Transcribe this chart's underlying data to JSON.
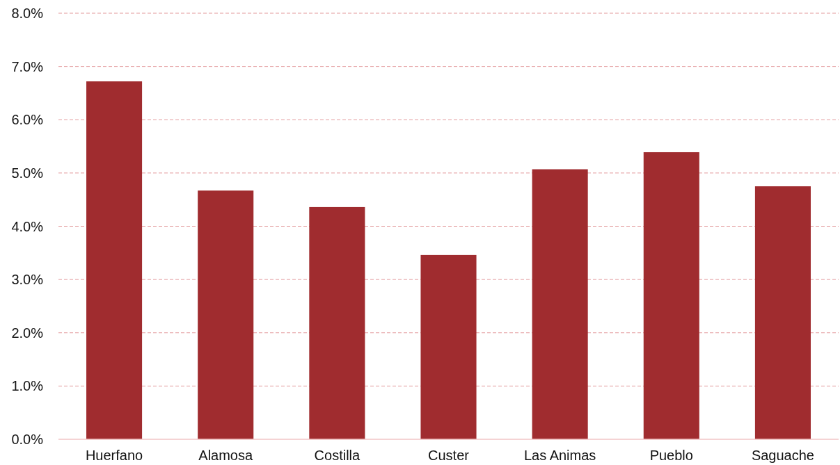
{
  "chart_data": {
    "type": "bar",
    "categories": [
      "Huerfano",
      "Alamosa",
      "Costilla",
      "Custer",
      "Las Animas",
      "Pueblo",
      "Saguache"
    ],
    "values": [
      6.72,
      4.67,
      4.36,
      3.46,
      5.07,
      5.39,
      4.75
    ],
    "color": "#a02c2f",
    "ylim": [
      0,
      8
    ],
    "yticks": [
      {
        "value": 0,
        "label": "0.0%"
      },
      {
        "value": 1,
        "label": "1.0%"
      },
      {
        "value": 2,
        "label": "2.0%"
      },
      {
        "value": 3,
        "label": "3.0%"
      },
      {
        "value": 4,
        "label": "4.0%"
      },
      {
        "value": 5,
        "label": "5.0%"
      },
      {
        "value": 6,
        "label": "6.0%"
      },
      {
        "value": 7,
        "label": "7.0%"
      },
      {
        "value": 8,
        "label": "8.0%"
      }
    ],
    "grid": "y"
  }
}
